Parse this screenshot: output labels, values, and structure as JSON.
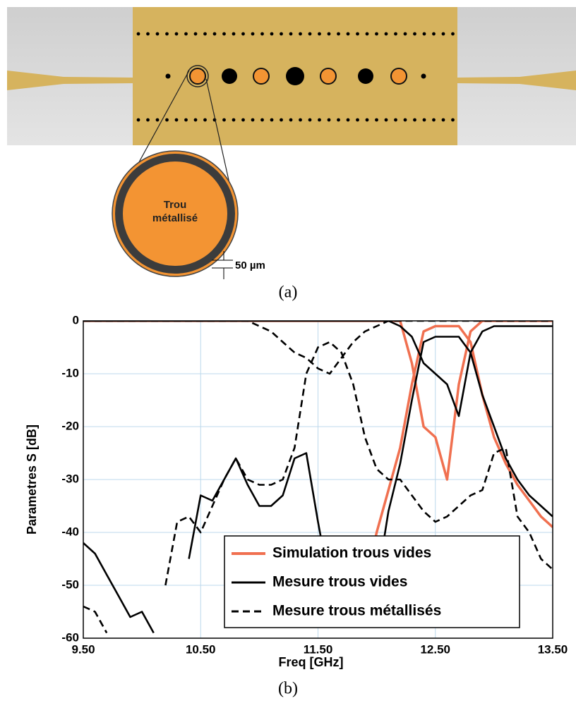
{
  "figure": {
    "inset_text": [
      "Trou",
      "métallisé"
    ],
    "dimension": "50 µm",
    "panel_a": "(a)",
    "panel_b": "(b)"
  },
  "chart_data": {
    "type": "line",
    "xlabel": "Freq [GHz]",
    "ylabel": "Parametres S [dB]",
    "x": [
      9.5,
      9.6,
      9.7,
      9.8,
      9.9,
      10.0,
      10.1,
      10.2,
      10.3,
      10.4,
      10.5,
      10.6,
      10.7,
      10.8,
      10.9,
      11.0,
      11.1,
      11.2,
      11.3,
      11.4,
      11.5,
      11.6,
      11.7,
      11.8,
      11.9,
      12.0,
      12.1,
      12.2,
      12.3,
      12.4,
      12.5,
      12.6,
      12.7,
      12.8,
      12.9,
      13.0,
      13.1,
      13.2,
      13.3,
      13.4,
      13.5
    ],
    "xlim": [
      9.5,
      13.5
    ],
    "xticks": [
      {
        "value": 9.5,
        "label": "9.50"
      },
      {
        "value": 10.5,
        "label": "10.50"
      },
      {
        "value": 11.5,
        "label": "11.50"
      },
      {
        "value": 12.5,
        "label": "12.50"
      },
      {
        "value": 13.5,
        "label": "13.50"
      }
    ],
    "ylim": [
      -60,
      0
    ],
    "yticks": [
      0,
      -10,
      -20,
      -30,
      -40,
      -50,
      -60
    ],
    "grid": true,
    "legend": "lower right",
    "series": [
      {
        "name": "Simulation trous vides",
        "color": "#f07050",
        "dash": "none",
        "traces": [
          [
            null,
            null,
            null,
            null,
            null,
            null,
            null,
            null,
            null,
            null,
            null,
            null,
            null,
            null,
            null,
            null,
            null,
            null,
            null,
            null,
            null,
            null,
            null,
            null,
            -50,
            -40,
            -32,
            -24,
            -12,
            -2,
            -1,
            -1,
            -1,
            -4,
            -14,
            -22,
            -27,
            -31,
            -34,
            -37,
            -39
          ],
          [
            0,
            0,
            0,
            0,
            0,
            0,
            0,
            0,
            0,
            0,
            0,
            0,
            0,
            0,
            0,
            0,
            0,
            0,
            0,
            0,
            0,
            0,
            0,
            0,
            0,
            0,
            0,
            0,
            -8,
            -20,
            -22,
            -30,
            -12,
            -2,
            0,
            0,
            0,
            0,
            0,
            0,
            0
          ]
        ]
      },
      {
        "name": "Mesure trous vides",
        "color": "#000000",
        "dash": "none",
        "traces": [
          [
            -42,
            -44,
            -48,
            -52,
            -56,
            -55,
            -59,
            null,
            null,
            -45,
            -33,
            -34,
            -30,
            -26,
            -31,
            -35,
            -35,
            -33,
            -26,
            -25,
            -38,
            -50,
            null,
            null,
            null,
            -50,
            -36,
            -27,
            -15,
            -4,
            -3,
            -3,
            -3,
            -6,
            -14,
            -20,
            -26,
            -30,
            -33,
            -35,
            -37
          ],
          [
            0,
            0,
            0,
            0,
            0,
            0,
            0,
            0,
            0,
            0,
            0,
            0,
            0,
            0,
            0,
            0,
            0,
            0,
            0,
            0,
            0,
            0,
            0,
            0,
            0,
            0,
            0,
            -1,
            -3,
            -8,
            -10,
            -12,
            -18,
            -6,
            -2,
            -1,
            -1,
            -1,
            -1,
            -1,
            -1
          ]
        ]
      },
      {
        "name": "Mesure trous métallisés",
        "color": "#000000",
        "dash": "10,6",
        "traces": [
          [
            -54,
            -55,
            -59,
            null,
            null,
            null,
            null,
            -50,
            -38,
            -37,
            -40,
            -35,
            -30,
            -26,
            -30,
            -31,
            -31,
            -30,
            -24,
            -10,
            -5,
            -4,
            -6,
            -12,
            -22,
            -28,
            -30,
            -30,
            -33,
            -36,
            -38,
            -37,
            -35,
            -33,
            -32,
            -25,
            -24,
            -37,
            -40,
            -45,
            -47
          ],
          [
            0,
            0,
            0,
            0,
            0,
            0,
            0,
            0,
            0,
            0,
            0,
            0,
            0,
            0,
            0,
            -1,
            -2,
            -4,
            -6,
            -7,
            -9,
            -10,
            -7,
            -4,
            -2,
            -1,
            0,
            0,
            0,
            0,
            0,
            0,
            0,
            0,
            0,
            0,
            0,
            0,
            0,
            0,
            0
          ]
        ]
      }
    ]
  }
}
